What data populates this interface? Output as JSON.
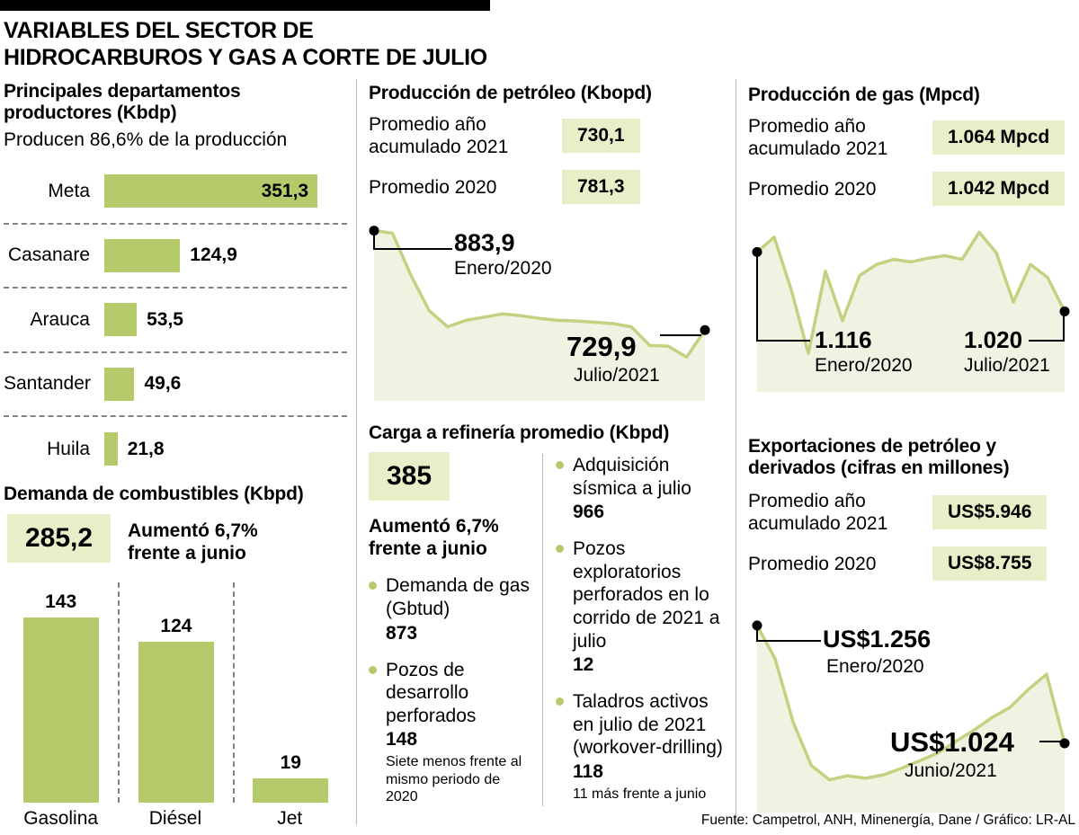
{
  "header": {
    "title_lines": [
      "VARIABLES DEL SECTOR DE",
      "HIDROCARBUROS Y GAS A CORTE DE JULIO"
    ]
  },
  "colors": {
    "bar_green": "#b5ca6b",
    "line_green": "#c5d180",
    "area_fill": "#eff3e2",
    "box_bg": "#e9edc8"
  },
  "chart_data": [
    {
      "id": "departamentos",
      "type": "bar",
      "orientation": "horizontal",
      "title": "Principales departamentos productores (Kbdp)",
      "subtitle": "Producen 86,6% de la producción",
      "categories": [
        "Meta",
        "Casanare",
        "Arauca",
        "Santander",
        "Huila"
      ],
      "values": [
        351.3,
        124.9,
        53.5,
        49.6,
        21.8
      ],
      "value_labels": [
        "351,3",
        "124,9",
        "53,5",
        "49,6",
        "21,8"
      ],
      "xlim": [
        0,
        400
      ],
      "grid": false
    },
    {
      "id": "combustibles",
      "type": "bar",
      "orientation": "vertical",
      "title": "Demanda de combustibles (Kbpd)",
      "total": "285,2",
      "note": "Aumentó 6,7% frente a junio",
      "categories": [
        "Gasolina",
        "Diésel",
        "Jet"
      ],
      "values": [
        143,
        124,
        19
      ],
      "value_labels": [
        "143",
        "124",
        "19"
      ],
      "ylim": [
        0,
        170
      ],
      "grid": false
    },
    {
      "id": "petroleo",
      "type": "area",
      "title": "Producción de petróleo (Kbopd)",
      "stats": [
        {
          "label": "Promedio año acumulado 2021",
          "value": "730,1"
        },
        {
          "label": "Promedio 2020",
          "value": "781,3"
        }
      ],
      "series": [
        {
          "name": "Producción mensual",
          "values": [
            883.9,
            880,
            815,
            760,
            735,
            745,
            750,
            755,
            752,
            748,
            745,
            744,
            742,
            740,
            735,
            706,
            705,
            688,
            729.9
          ]
        }
      ],
      "x_range": [
        "Enero/2020",
        "Julio/2021"
      ],
      "point_labels": [
        {
          "value": "883,9",
          "date": "Enero/2020"
        },
        {
          "value": "729,9",
          "date": "Julio/2021"
        }
      ],
      "ylim": [
        630,
        900
      ],
      "legend": "none"
    },
    {
      "id": "gas",
      "type": "area",
      "title": "Producción de gas (Mpcd)",
      "stats": [
        {
          "label": "Promedio año acumulado 2021",
          "value": "1.064 Mpcd"
        },
        {
          "label": "Promedio 2020",
          "value": "1.042 Mpcd"
        }
      ],
      "series": [
        {
          "name": "Producción mensual",
          "values": [
            1116,
            1140,
            1055,
            952,
            1085,
            1005,
            1078,
            1096,
            1104,
            1100,
            1106,
            1110,
            1104,
            1148,
            1115,
            1035,
            1096,
            1075,
            1020
          ]
        }
      ],
      "x_range": [
        "Enero/2020",
        "Julio/2021"
      ],
      "point_labels": [
        {
          "value": "1.116",
          "date": "Enero/2020"
        },
        {
          "value": "1.020",
          "date": "Julio/2021"
        }
      ],
      "ylim": [
        900,
        1150
      ],
      "legend": "none"
    },
    {
      "id": "exportaciones",
      "type": "area",
      "title": "Exportaciones de petróleo y derivados (cifras en millones)",
      "stats": [
        {
          "label": "Promedio año acumulado 2021",
          "value": "US$5.946"
        },
        {
          "label": "Promedio 2020",
          "value": "US$8.755"
        }
      ],
      "series": [
        {
          "name": "Exportaciones mensuales",
          "values": [
            1256,
            1190,
            1065,
            980,
            952,
            960,
            955,
            962,
            975,
            990,
            1005,
            1028,
            1050,
            1075,
            1095,
            1130,
            1160,
            1024
          ]
        }
      ],
      "x_range": [
        "Enero/2020",
        "Junio/2021"
      ],
      "point_labels": [
        {
          "value": "US$1.256",
          "date": "Enero/2020"
        },
        {
          "value": "US$1.024",
          "date": "Junio/2021"
        }
      ],
      "ylim": [
        900,
        1300
      ],
      "legend": "none"
    }
  ],
  "refinery": {
    "heading": "Carga a refinería promedio (Kbpd)",
    "value": "385",
    "note": "Aumentó 6,7% frente a junio",
    "left_items": [
      {
        "label": "Demanda de gas (Gbtud)",
        "value": "873",
        "note": ""
      },
      {
        "label": "Pozos de desarrollo perforados",
        "value": "148",
        "note": "Siete menos frente al mismo periodo de 2020"
      }
    ],
    "right_items": [
      {
        "label": "Adquisición sísmica a julio",
        "value": "966",
        "note": ""
      },
      {
        "label": "Pozos exploratorios perforados en lo corrido de 2021 a julio",
        "value": "12",
        "note": ""
      },
      {
        "label": "Taladros activos en julio de 2021 (workover-drilling)",
        "value": "118",
        "note": "11 más frente a junio"
      }
    ]
  },
  "footer": {
    "source": "Fuente: Campetrol, ANH, Minenergía, Dane / Gráfico: LR-AL"
  }
}
